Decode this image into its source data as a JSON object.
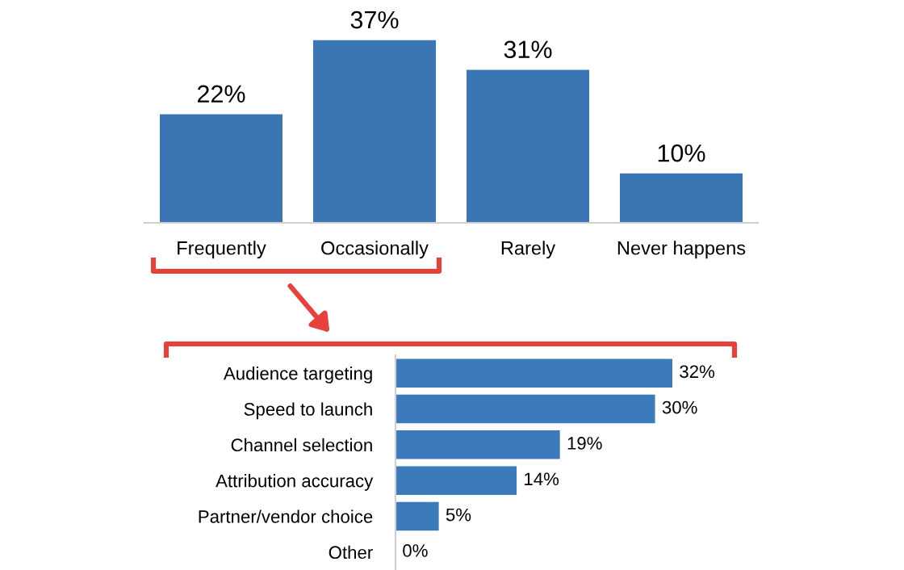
{
  "chart_data": [
    {
      "type": "bar",
      "categories": [
        "Frequently",
        "Occasionally",
        "Rarely",
        "Never happens"
      ],
      "values": [
        22,
        37,
        31,
        10
      ],
      "value_labels": [
        "22%",
        "37%",
        "31%",
        "10%"
      ],
      "color": "#3a76b3",
      "tick_labels": "x",
      "grid": false,
      "legend": false
    },
    {
      "type": "bar",
      "orientation": "horizontal",
      "categories": [
        "Audience targeting",
        "Speed to launch",
        "Channel selection",
        "Attribution accuracy",
        "Partner/vendor choice",
        "Other"
      ],
      "values": [
        32,
        30,
        19,
        14,
        5,
        0
      ],
      "value_labels": [
        "32%",
        "30%",
        "19%",
        "14%",
        "5%",
        "0%"
      ],
      "color": "#3b7abb",
      "tick_labels": "y",
      "grid": false,
      "legend": false
    }
  ]
}
